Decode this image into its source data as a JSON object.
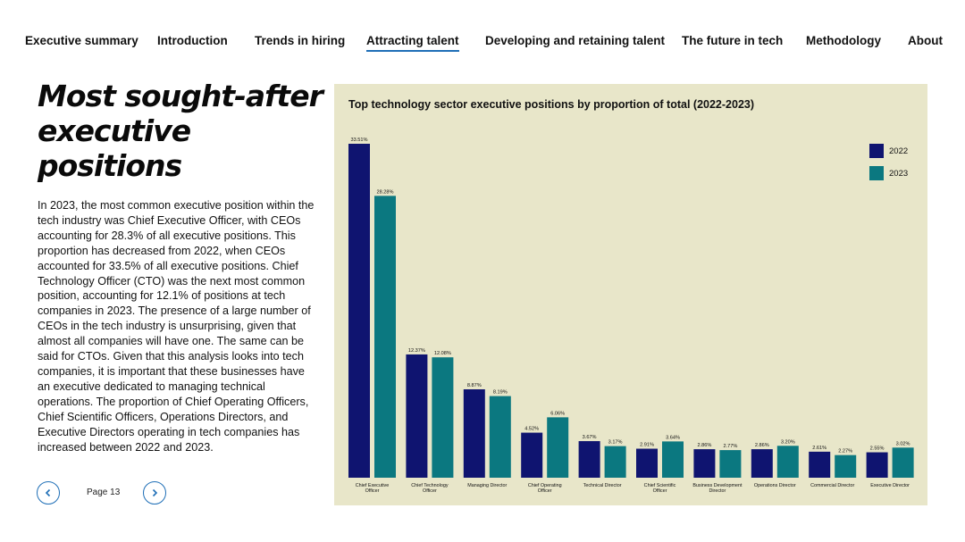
{
  "nav": {
    "items": [
      {
        "label": "Executive summary",
        "active": false
      },
      {
        "label": "Introduction",
        "active": false
      },
      {
        "label": "Trends in hiring",
        "active": false
      },
      {
        "label": "Attracting talent",
        "active": true
      },
      {
        "label": "Developing and retaining talent",
        "active": false
      },
      {
        "label": "The future in tech",
        "active": false
      },
      {
        "label": "Methodology",
        "active": false
      },
      {
        "label": "About",
        "active": false
      }
    ]
  },
  "section": {
    "title": "Most sought-after executive positions",
    "body": "In 2023, the most common executive position within the tech industry was Chief Executive Officer, with CEOs accounting for 28.3% of all executive positions. This proportion has decreased from 2022, when CEOs accounted for 33.5% of all executive positions. Chief Technology Officer (CTO) was the next most common position, accounting for 12.1% of positions at tech companies in 2023. The presence of a large number of CEOs in the tech industry is unsurprising, given that almost all companies will have one. The same can be said for CTOs. Given that this analysis looks into tech companies, it is important that these businesses have an executive dedicated to managing technical operations. The proportion of Chief Operating Officers, Chief Scientific Officers, Operations Directors, and Executive Directors operating in tech companies has increased between 2022 and 2023."
  },
  "pager": {
    "label": "Page 13",
    "prev_icon": "chevron-left-icon",
    "next_icon": "chevron-right-icon"
  },
  "colors": {
    "accent": "#1f6fb7",
    "panel_bg": "#e8e6c9",
    "series_2022": "#0f1470",
    "series_2023": "#0b7880"
  },
  "chart_data": {
    "type": "bar",
    "title": "Top technology sector executive positions by proportion of total (2022-2023)",
    "xlabel": "",
    "ylabel": "",
    "ylim": [
      0,
      33.51
    ],
    "legend_position": "top-right",
    "grid": false,
    "categories": [
      [
        "Chief Executive",
        "Officer"
      ],
      [
        "Chief Technology",
        "Officer"
      ],
      [
        "Managing Director"
      ],
      [
        "Chief Operating",
        "Officer"
      ],
      [
        "Technical Director"
      ],
      [
        "Chief Scientific",
        "Officer"
      ],
      [
        "Business Development",
        "Director"
      ],
      [
        "Operations Director"
      ],
      [
        "Commercial Director"
      ],
      [
        "Executive Director"
      ]
    ],
    "series": [
      {
        "name": "2022",
        "values": [
          33.51,
          12.37,
          8.87,
          4.52,
          3.67,
          2.91,
          2.86,
          2.86,
          2.61,
          2.55
        ],
        "labels": [
          "33.51%",
          "12.37%",
          "8.87%",
          "4.52%",
          "3.67%",
          "2.91%",
          "2.86%",
          "2.86%",
          "2.61%",
          "2.55%"
        ]
      },
      {
        "name": "2023",
        "values": [
          28.28,
          12.08,
          8.19,
          6.06,
          3.17,
          3.64,
          2.77,
          3.2,
          2.27,
          3.02
        ],
        "labels": [
          "28.28%",
          "12.08%",
          "8.19%",
          "6.06%",
          "3.17%",
          "3.64%",
          "2.77%",
          "3.20%",
          "2.27%",
          "3.02%"
        ]
      }
    ]
  }
}
